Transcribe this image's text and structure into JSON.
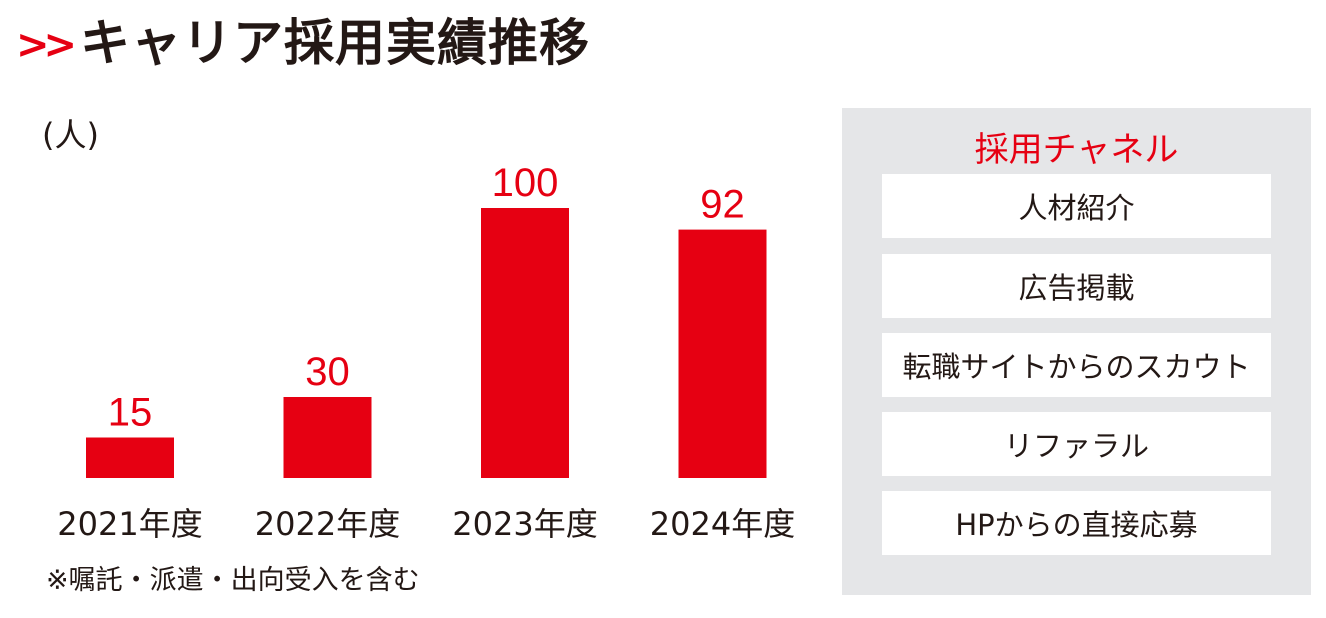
{
  "header": {
    "title": "キャリア採用実績推移",
    "icon": "double-chevron-right-icon"
  },
  "colors": {
    "accent": "#e60012",
    "panel_bg": "#e5e6e8"
  },
  "chart_data": {
    "type": "bar",
    "title": "キャリア採用実績推移",
    "ylabel": "(人)",
    "categories": [
      "2021年度",
      "2022年度",
      "2023年度",
      "2024年度"
    ],
    "values": [
      15,
      30,
      100,
      92
    ],
    "ylim": [
      0,
      100
    ],
    "grid": false,
    "note": "※嘱託・派遣・出向受入を含む"
  },
  "channels": {
    "title": "採用チャネル",
    "items": [
      "人材紹介",
      "広告掲載",
      "転職サイトからのスカウト",
      "リファラル",
      "HPからの直接応募"
    ]
  }
}
